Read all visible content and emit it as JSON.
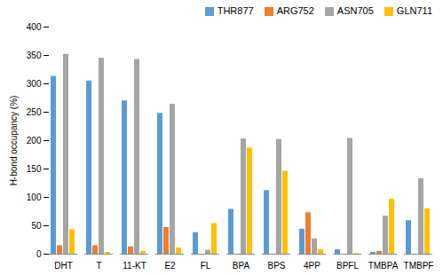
{
  "chart_data": {
    "type": "bar",
    "y_label": "H-bond occupancy (%)",
    "categories": [
      "DHT",
      "T",
      "11-KT",
      "E2",
      "FL",
      "BPA",
      "BPS",
      "4PP",
      "BPFL",
      "TMBPA",
      "TMBPF"
    ],
    "series": [
      {
        "name": "THR877",
        "color": "#5b9bd5",
        "values": [
          313,
          305,
          270,
          248,
          38,
          79,
          112,
          44,
          8,
          3,
          59
        ]
      },
      {
        "name": "ARG752",
        "color": "#ed7d31",
        "values": [
          15,
          15,
          13,
          47,
          0,
          0,
          0,
          73,
          0,
          5,
          0
        ]
      },
      {
        "name": "ASN705",
        "color": "#a5a5a5",
        "values": [
          352,
          345,
          343,
          264,
          7,
          203,
          202,
          27,
          204,
          67,
          133
        ]
      },
      {
        "name": "GLN711",
        "color": "#ffc000",
        "values": [
          43,
          3,
          5,
          11,
          54,
          187,
          146,
          8,
          1,
          97,
          80
        ]
      }
    ],
    "ylim": [
      0,
      400
    ],
    "yticks": [
      0,
      50,
      100,
      150,
      200,
      250,
      300,
      350,
      400
    ],
    "grid": false,
    "legend": "top-right"
  }
}
